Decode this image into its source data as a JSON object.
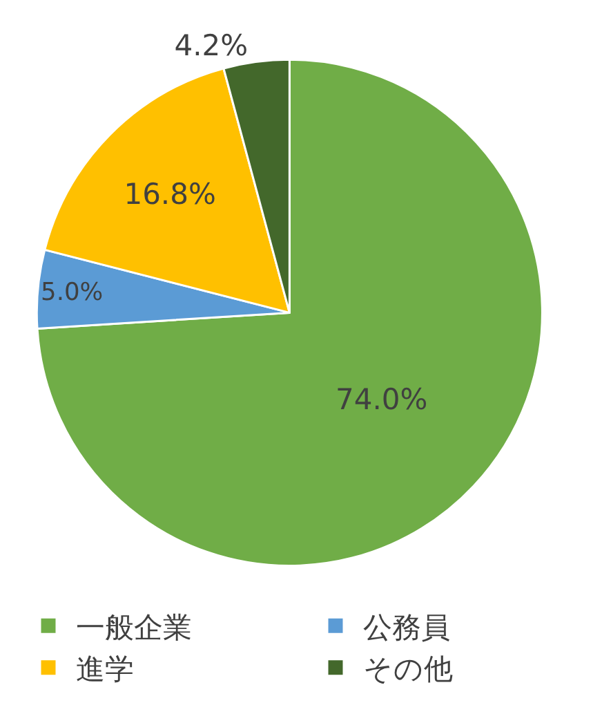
{
  "chart_data": {
    "type": "pie",
    "categories": [
      "一般企業",
      "公務員",
      "進学",
      "その他"
    ],
    "values": [
      74.0,
      5.0,
      16.8,
      4.2
    ],
    "colors": [
      "#70ad47",
      "#5b9bd5",
      "#ffc000",
      "#43682b"
    ],
    "value_labels": [
      "74.0%",
      "5.0%",
      "16.8%",
      "4.2%"
    ],
    "legend": "bottom"
  }
}
